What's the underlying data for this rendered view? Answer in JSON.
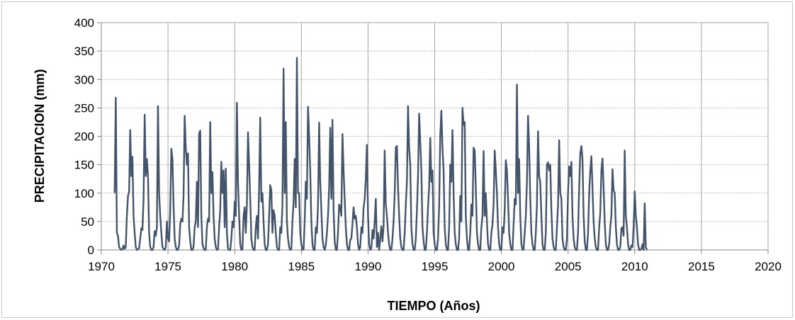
{
  "chart_data": {
    "type": "line",
    "xlabel": "TIEMPO (Años)",
    "ylabel": "PRECIPITACION (mm)",
    "xlim": [
      1970,
      2020
    ],
    "ylim": [
      0,
      400
    ],
    "x_ticks": [
      "1970",
      "1975",
      "1980",
      "1985",
      "1990",
      "1995",
      "2000",
      "2005",
      "2010",
      "2015",
      "2020"
    ],
    "y_ticks": [
      "0",
      "50",
      "100",
      "150",
      "200",
      "250",
      "300",
      "350",
      "400"
    ],
    "grid": "dotted horizontal and vertical",
    "line_color": "#44546a",
    "grid_color": "#a6a6a6",
    "start_year": 1971,
    "sample_step": 0.0833333,
    "series": [
      {
        "values": [
          100,
          268,
          30,
          25,
          5,
          2,
          0,
          1,
          8,
          2,
          5,
          60,
          95,
          102,
          211,
          130,
          164,
          60,
          30,
          5,
          0,
          1,
          3,
          20,
          38,
          35,
          90,
          238,
          130,
          160,
          130,
          30,
          5,
          0,
          0,
          5,
          33,
          25,
          40,
          253,
          100,
          60,
          30,
          5,
          2,
          0,
          5,
          50,
          20,
          15,
          70,
          178,
          160,
          80,
          20,
          5,
          0,
          0,
          8,
          45,
          55,
          50,
          95,
          236,
          180,
          150,
          170,
          40,
          15,
          0,
          0,
          5,
          40,
          50,
          120,
          40,
          205,
          210,
          60,
          10,
          3,
          0,
          0,
          40,
          55,
          50,
          225,
          100,
          137,
          60,
          20,
          5,
          0,
          1,
          40,
          70,
          155,
          100,
          140,
          40,
          143,
          30,
          2,
          0,
          0,
          20,
          50,
          40,
          85,
          60,
          259,
          120,
          60,
          10,
          0,
          1,
          60,
          75,
          30,
          80,
          207,
          150,
          90,
          20,
          5,
          0,
          0,
          40,
          60,
          20,
          110,
          233,
          85,
          100,
          50,
          10,
          0,
          0,
          10,
          60,
          114,
          105,
          30,
          70,
          60,
          30,
          5,
          0,
          0,
          40,
          30,
          80,
          319,
          100,
          225,
          50,
          20,
          5,
          0,
          2,
          50,
          85,
          160,
          75,
          338,
          100,
          100,
          30,
          10,
          0,
          1,
          50,
          120,
          90,
          252,
          200,
          140,
          50,
          10,
          0,
          0,
          40,
          30,
          80,
          224,
          120,
          70,
          20,
          5,
          0,
          8,
          30,
          60,
          110,
          215,
          90,
          229,
          70,
          15,
          0,
          0,
          30,
          80,
          75,
          60,
          204,
          140,
          90,
          40,
          10,
          0,
          0,
          18,
          20,
          45,
          75,
          55,
          60,
          40,
          10,
          0,
          5,
          40,
          30,
          74,
          90,
          125,
          185,
          60,
          10,
          0,
          3,
          35,
          20,
          50,
          90,
          5,
          30,
          0,
          20,
          42,
          15,
          40,
          175,
          80,
          60,
          30,
          10,
          0,
          0,
          20,
          50,
          100,
          180,
          183,
          110,
          60,
          20,
          5,
          0,
          0,
          30,
          80,
          120,
          253,
          180,
          150,
          40,
          10,
          0,
          0,
          20,
          70,
          130,
          240,
          190,
          140,
          40,
          15,
          0,
          0,
          30,
          75,
          110,
          197,
          120,
          140,
          30,
          10,
          0,
          0,
          20,
          75,
          200,
          245,
          180,
          140,
          40,
          10,
          0,
          0,
          40,
          150,
          120,
          211,
          100,
          30,
          10,
          0,
          0,
          20,
          95,
          50,
          250,
          220,
          225,
          60,
          20,
          0,
          0,
          30,
          80,
          60,
          180,
          175,
          110,
          30,
          10,
          0,
          0,
          40,
          60,
          174,
          60,
          100,
          50,
          10,
          0,
          0,
          30,
          45,
          80,
          175,
          140,
          100,
          40,
          10,
          0,
          0,
          40,
          30,
          70,
          158,
          140,
          90,
          30,
          10,
          0,
          0,
          45,
          90,
          80,
          291,
          100,
          160,
          60,
          10,
          0,
          1,
          30,
          60,
          120,
          236,
          180,
          90,
          30,
          10,
          0,
          0,
          30,
          80,
          209,
          130,
          120,
          60,
          10,
          0,
          0,
          30,
          150,
          154,
          140,
          150,
          70,
          20,
          5,
          0,
          0,
          40,
          80,
          193,
          100,
          90,
          20,
          5,
          0,
          0,
          20,
          100,
          147,
          130,
          155,
          60,
          20,
          5,
          0,
          0,
          30,
          110,
          170,
          183,
          160,
          60,
          15,
          0,
          0,
          30,
          100,
          140,
          165,
          110,
          50,
          20,
          5,
          0,
          0,
          40,
          65,
          140,
          161,
          110,
          50,
          10,
          0,
          0,
          10,
          40,
          60,
          142,
          105,
          100,
          40,
          10,
          0,
          0,
          5,
          38,
          40,
          25,
          175,
          60,
          40,
          10,
          0,
          0,
          8,
          5,
          40,
          103,
          60,
          40,
          10,
          0,
          0,
          2,
          10,
          0,
          82,
          5,
          0
        ]
      }
    ]
  }
}
